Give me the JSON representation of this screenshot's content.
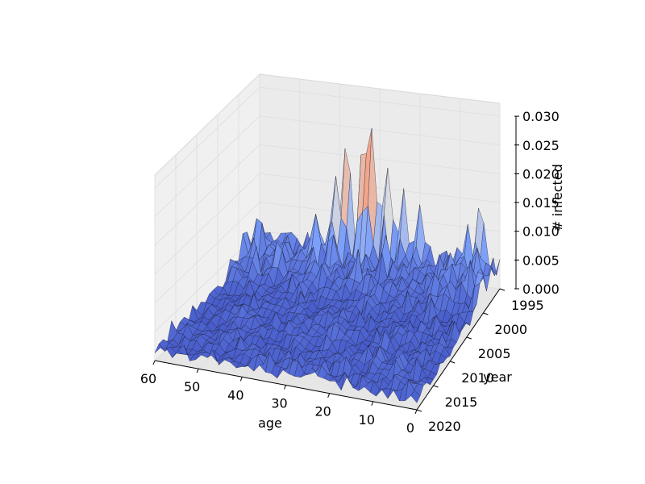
{
  "chart_data": {
    "type": "surface3d",
    "title": "",
    "xlabel": "age",
    "ylabel": "year",
    "zlabel": "# infected",
    "x_ticks": [
      60,
      50,
      40,
      30,
      20,
      10,
      0
    ],
    "y_ticks": [
      1995,
      2000,
      2005,
      2010,
      2015,
      2020
    ],
    "z_ticks": [
      "0.000",
      "0.005",
      "0.010",
      "0.015",
      "0.020",
      "0.025",
      "0.030"
    ],
    "x_range": [
      0,
      60
    ],
    "y_range": [
      1995,
      2020
    ],
    "z_range": [
      0,
      0.03
    ],
    "colormap": "coolwarm",
    "colors": {
      "low": "#3b4cc0",
      "mid": "#dddddd",
      "high": "#b40426",
      "pane": "#f0f0f0",
      "grid": "#e0e0e0"
    },
    "peaks": [
      {
        "age": 32,
        "year": 1995,
        "value": 0.026
      },
      {
        "age": 34,
        "year": 1995,
        "value": 0.024
      },
      {
        "age": 28,
        "year": 1995,
        "value": 0.021
      },
      {
        "age": 38,
        "year": 1995,
        "value": 0.022
      },
      {
        "age": 40,
        "year": 1996,
        "value": 0.019
      },
      {
        "age": 44,
        "year": 1997,
        "value": 0.012
      },
      {
        "age": 24,
        "year": 1995,
        "value": 0.014
      },
      {
        "age": 20,
        "year": 1995,
        "value": 0.013
      },
      {
        "age": 5,
        "year": 1995,
        "value": 0.015
      },
      {
        "age": 8,
        "year": 1995,
        "value": 0.01
      },
      {
        "age": 50,
        "year": 2000,
        "value": 0.008
      },
      {
        "age": 58,
        "year": 2003,
        "value": 0.006
      }
    ],
    "typical_value_range": [
      0.0,
      0.006
    ],
    "grid": true
  }
}
